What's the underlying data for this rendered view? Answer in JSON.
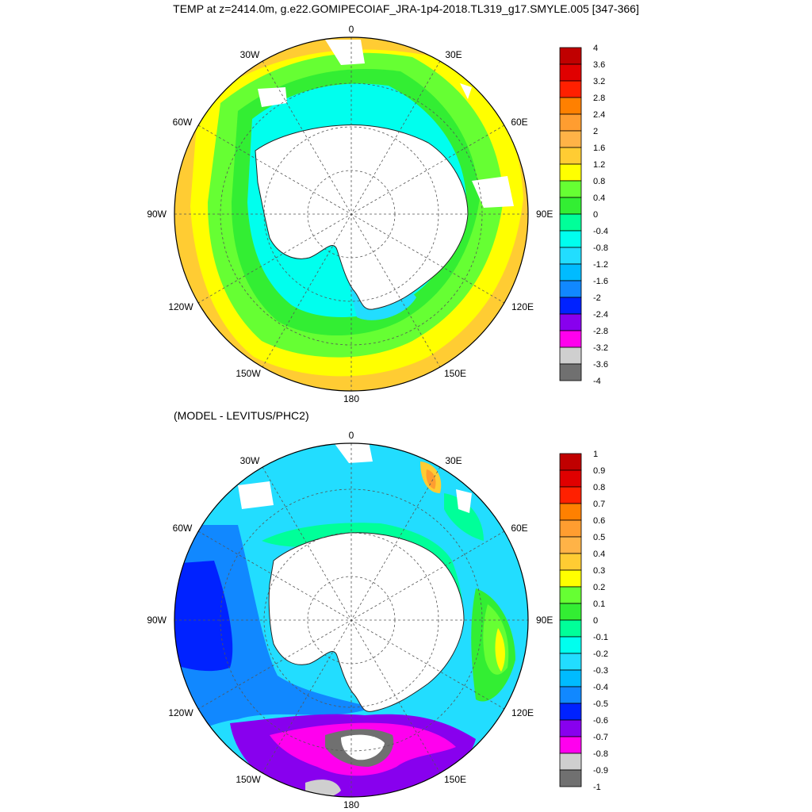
{
  "title": "TEMP at z=2414.0m, g.e22.GOMIPECOIAF_JRA-1p4-2018.TL319_g17.SMYLE.005 [347-366]",
  "subtitle": "(MODEL - LEVITUS/PHC2)",
  "map_labels": {
    "top": "0",
    "bottom": "180",
    "left": "90W",
    "right": "90E",
    "nw1": "30W",
    "nw2": "60W",
    "ne1": "30E",
    "ne2": "60E",
    "sw1": "120W",
    "sw2": "150W",
    "se1": "120E",
    "se2": "150E"
  },
  "colorbar1": {
    "labels": [
      "4",
      "3.6",
      "3.2",
      "2.8",
      "2.4",
      "2",
      "1.6",
      "1.2",
      "0.8",
      "0.4",
      "0",
      "-0.4",
      "-0.8",
      "-1.2",
      "-1.6",
      "-2",
      "-2.4",
      "-2.8",
      "-3.2",
      "-3.6",
      "-4"
    ],
    "colors": [
      "#c00000",
      "#e00000",
      "#ff2000",
      "#ff8000",
      "#ff9d30",
      "#ffb347",
      "#ffcc33",
      "#ffff00",
      "#66ff33",
      "#33ee33",
      "#00ff99",
      "#00ffee",
      "#22ddff",
      "#00bbff",
      "#1188ff",
      "#0022ff",
      "#8800ee",
      "#ff00ee",
      "#cfcfcf",
      "#707070"
    ]
  },
  "colorbar2": {
    "labels": [
      "1",
      "0.9",
      "0.8",
      "0.7",
      "0.6",
      "0.5",
      "0.4",
      "0.3",
      "0.2",
      "0.1",
      "0",
      "-0.1",
      "-0.2",
      "-0.3",
      "-0.4",
      "-0.5",
      "-0.6",
      "-0.7",
      "-0.8",
      "-0.9",
      "-1"
    ],
    "colors": [
      "#c00000",
      "#e00000",
      "#ff2000",
      "#ff8000",
      "#ff9d30",
      "#ffb347",
      "#ffcc33",
      "#ffff00",
      "#66ff33",
      "#33ee33",
      "#00ff99",
      "#00ffee",
      "#22ddff",
      "#00bbff",
      "#1188ff",
      "#0022ff",
      "#8800ee",
      "#ff00ee",
      "#cfcfcf",
      "#707070"
    ]
  }
}
